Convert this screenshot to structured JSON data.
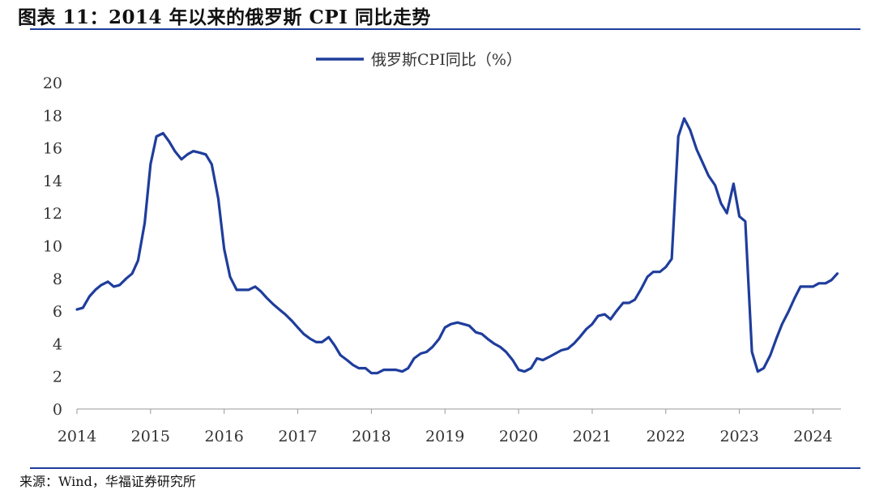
{
  "figure": {
    "title": "图表 11：2014 年以来的俄罗斯 CPI 同比走势",
    "source": "来源：Wind，华福证券研究所",
    "rule_color": "#1f3d9c"
  },
  "chart_data": {
    "type": "line",
    "title": "",
    "xlabel": "",
    "ylabel": "",
    "ylim": [
      0,
      20
    ],
    "xlim": [
      2014,
      2024.38
    ],
    "yticks": [
      "0",
      "2",
      "4",
      "6",
      "8",
      "10",
      "12",
      "14",
      "16",
      "18",
      "20"
    ],
    "xticks": [
      "2014",
      "2015",
      "2016",
      "2017",
      "2018",
      "2019",
      "2020",
      "2021",
      "2022",
      "2023",
      "2024"
    ],
    "grid": false,
    "legend_position": "top-center",
    "series": [
      {
        "name": "俄罗斯CPI同比（%）",
        "color": "#1f3d9c",
        "x": [
          2014.0,
          2014.08,
          2014.17,
          2014.25,
          2014.33,
          2014.42,
          2014.5,
          2014.58,
          2014.67,
          2014.75,
          2014.83,
          2014.92,
          2015.0,
          2015.08,
          2015.17,
          2015.25,
          2015.33,
          2015.42,
          2015.5,
          2015.58,
          2015.67,
          2015.75,
          2015.83,
          2015.92,
          2016.0,
          2016.08,
          2016.17,
          2016.25,
          2016.33,
          2016.42,
          2016.5,
          2016.58,
          2016.67,
          2016.75,
          2016.83,
          2016.92,
          2017.0,
          2017.08,
          2017.17,
          2017.25,
          2017.33,
          2017.42,
          2017.5,
          2017.58,
          2017.67,
          2017.75,
          2017.83,
          2017.92,
          2018.0,
          2018.08,
          2018.17,
          2018.25,
          2018.33,
          2018.42,
          2018.5,
          2018.58,
          2018.67,
          2018.75,
          2018.83,
          2018.92,
          2019.0,
          2019.08,
          2019.17,
          2019.25,
          2019.33,
          2019.42,
          2019.5,
          2019.58,
          2019.67,
          2019.75,
          2019.83,
          2019.92,
          2020.0,
          2020.08,
          2020.17,
          2020.25,
          2020.33,
          2020.42,
          2020.5,
          2020.58,
          2020.67,
          2020.75,
          2020.83,
          2020.92,
          2021.0,
          2021.08,
          2021.17,
          2021.25,
          2021.33,
          2021.42,
          2021.5,
          2021.58,
          2021.67,
          2021.75,
          2021.83,
          2021.92,
          2022.0,
          2022.08,
          2022.17,
          2022.25,
          2022.33,
          2022.42,
          2022.5,
          2022.58,
          2022.67,
          2022.75,
          2022.83,
          2022.92,
          2023.0,
          2023.08,
          2023.17,
          2023.25,
          2023.33,
          2023.42,
          2023.5,
          2023.58,
          2023.67,
          2023.75,
          2023.83,
          2023.92,
          2024.0,
          2024.08,
          2024.17,
          2024.25,
          2024.33
        ],
        "values": [
          6.1,
          6.2,
          6.9,
          7.3,
          7.6,
          7.8,
          7.5,
          7.6,
          8.0,
          8.3,
          9.1,
          11.4,
          15.0,
          16.7,
          16.9,
          16.4,
          15.8,
          15.3,
          15.6,
          15.8,
          15.7,
          15.6,
          15.0,
          12.9,
          9.8,
          8.1,
          7.3,
          7.3,
          7.3,
          7.5,
          7.2,
          6.8,
          6.4,
          6.1,
          5.8,
          5.4,
          5.0,
          4.6,
          4.3,
          4.1,
          4.1,
          4.4,
          3.9,
          3.3,
          3.0,
          2.7,
          2.5,
          2.5,
          2.2,
          2.2,
          2.4,
          2.4,
          2.4,
          2.3,
          2.5,
          3.1,
          3.4,
          3.5,
          3.8,
          4.3,
          5.0,
          5.2,
          5.3,
          5.2,
          5.1,
          4.7,
          4.6,
          4.3,
          4.0,
          3.8,
          3.5,
          3.0,
          2.4,
          2.3,
          2.5,
          3.1,
          3.0,
          3.2,
          3.4,
          3.6,
          3.7,
          4.0,
          4.4,
          4.9,
          5.2,
          5.7,
          5.8,
          5.5,
          6.0,
          6.5,
          6.5,
          6.7,
          7.4,
          8.1,
          8.4,
          8.4,
          8.7,
          9.2,
          16.7,
          17.8,
          17.1,
          15.9,
          15.1,
          14.3,
          13.7,
          12.6,
          12.0,
          13.8,
          11.8,
          11.5,
          3.5,
          2.3,
          2.5,
          3.3,
          4.3,
          5.2,
          6.0,
          6.8,
          7.5,
          7.5,
          7.5,
          7.7,
          7.7,
          7.9,
          8.3
        ]
      }
    ]
  }
}
